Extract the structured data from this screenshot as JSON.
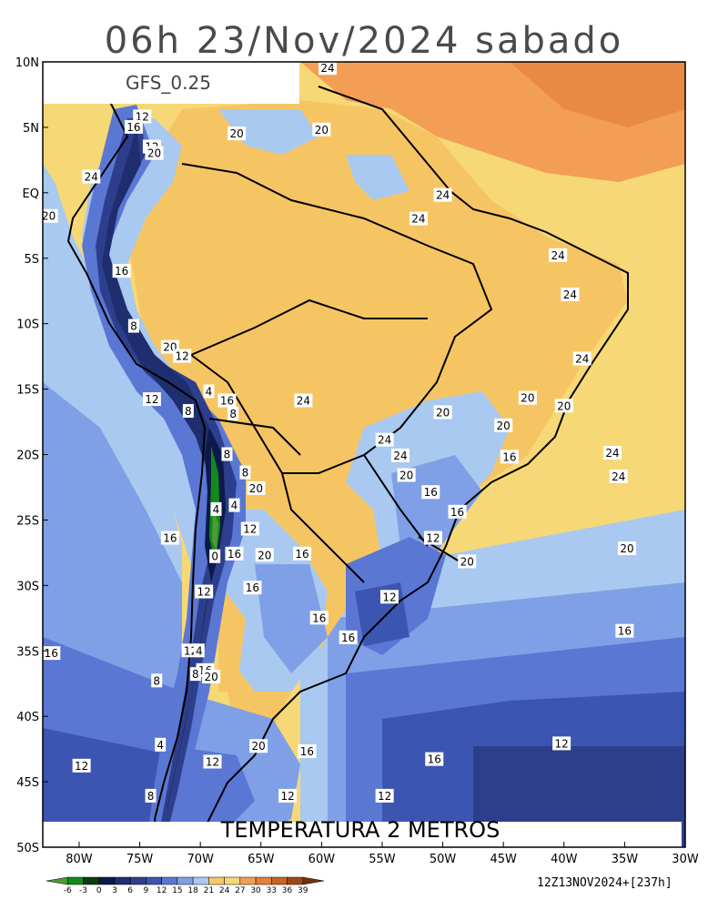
{
  "title": "06h 23/Nov/2024 sabado",
  "model_label": "GFS_0.25",
  "variable_label": "TEMPERATURA 2 METROS",
  "run_info": "12Z13NOV2024+[237h]",
  "lat_labels": [
    "10N",
    "5N",
    "EQ",
    "5S",
    "10S",
    "15S",
    "20S",
    "25S",
    "30S",
    "35S",
    "40S",
    "45S",
    "50S"
  ],
  "lon_labels": [
    "80W",
    "75W",
    "70W",
    "65W",
    "60W",
    "55W",
    "50W",
    "45W",
    "40W",
    "35W",
    "30W"
  ],
  "colorbar": {
    "ticks": [
      "-6",
      "-3",
      "0",
      "3",
      "6",
      "9",
      "12",
      "15",
      "18",
      "21",
      "24",
      "27",
      "30",
      "33",
      "36",
      "39"
    ],
    "colors": [
      "#4e9a33",
      "#138a1a",
      "#0a3d10",
      "#0b1a4a",
      "#1e2e6e",
      "#2d3f8c",
      "#3b55b0",
      "#5a77d4",
      "#7fa0e6",
      "#a9c9f0",
      "#f7c86a",
      "#f6d877",
      "#f39e55",
      "#e57f36",
      "#c8641f",
      "#9c4a14",
      "#6e3210"
    ]
  },
  "contour_labels": [
    {
      "text": "24",
      "lon": -59.5,
      "lat": 9.5
    },
    {
      "text": "12",
      "lon": -74.8,
      "lat": 5.8
    },
    {
      "text": "16",
      "lon": -75.5,
      "lat": 5.0
    },
    {
      "text": "12",
      "lon": -74.0,
      "lat": 3.5
    },
    {
      "text": "20",
      "lon": -73.8,
      "lat": 3.0
    },
    {
      "text": "20",
      "lon": -67.0,
      "lat": 4.5
    },
    {
      "text": "20",
      "lon": -60.0,
      "lat": 4.8
    },
    {
      "text": "24",
      "lon": -79.0,
      "lat": 1.2
    },
    {
      "text": "20",
      "lon": -82.5,
      "lat": -1.8
    },
    {
      "text": "24",
      "lon": -50.0,
      "lat": -0.2
    },
    {
      "text": "24",
      "lon": -52.0,
      "lat": -2.0
    },
    {
      "text": "24",
      "lon": -40.5,
      "lat": -4.8
    },
    {
      "text": "16",
      "lon": -76.5,
      "lat": -6.0
    },
    {
      "text": "24",
      "lon": -39.5,
      "lat": -7.8
    },
    {
      "text": "8",
      "lon": -75.5,
      "lat": -10.2
    },
    {
      "text": "20",
      "lon": -72.5,
      "lat": -11.8
    },
    {
      "text": "12",
      "lon": -71.5,
      "lat": -12.5
    },
    {
      "text": "24",
      "lon": -38.5,
      "lat": -12.7
    },
    {
      "text": "4",
      "lon": -69.3,
      "lat": -15.2
    },
    {
      "text": "12",
      "lon": -74.0,
      "lat": -15.8
    },
    {
      "text": "16",
      "lon": -67.8,
      "lat": -15.9
    },
    {
      "text": "8",
      "lon": -67.3,
      "lat": -16.9
    },
    {
      "text": "8",
      "lon": -71.0,
      "lat": -16.7
    },
    {
      "text": "24",
      "lon": -61.5,
      "lat": -15.9
    },
    {
      "text": "20",
      "lon": -43.0,
      "lat": -15.7
    },
    {
      "text": "20",
      "lon": -40.0,
      "lat": -16.3
    },
    {
      "text": "20",
      "lon": -50.0,
      "lat": -16.8
    },
    {
      "text": "20",
      "lon": -45.0,
      "lat": -17.8
    },
    {
      "text": "24",
      "lon": -54.8,
      "lat": -18.9
    },
    {
      "text": "24",
      "lon": -36.0,
      "lat": -19.9
    },
    {
      "text": "8",
      "lon": -67.8,
      "lat": -20.0
    },
    {
      "text": "24",
      "lon": -53.5,
      "lat": -20.1
    },
    {
      "text": "16",
      "lon": -44.5,
      "lat": -20.2
    },
    {
      "text": "24",
      "lon": -35.5,
      "lat": -21.7
    },
    {
      "text": "8",
      "lon": -66.3,
      "lat": -21.4
    },
    {
      "text": "20",
      "lon": -53.0,
      "lat": -21.6
    },
    {
      "text": "20",
      "lon": -65.4,
      "lat": -22.6
    },
    {
      "text": "16",
      "lon": -51.0,
      "lat": -22.9
    },
    {
      "text": "4",
      "lon": -68.7,
      "lat": -24.2
    },
    {
      "text": "4",
      "lon": -67.2,
      "lat": -23.9
    },
    {
      "text": "16",
      "lon": -48.8,
      "lat": -24.4
    },
    {
      "text": "12",
      "lon": -65.9,
      "lat": -25.7
    },
    {
      "text": "16",
      "lon": -72.5,
      "lat": -26.4
    },
    {
      "text": "12",
      "lon": -50.8,
      "lat": -26.4
    },
    {
      "text": "16",
      "lon": -67.2,
      "lat": -27.6
    },
    {
      "text": "0",
      "lon": -68.8,
      "lat": -27.8
    },
    {
      "text": "20",
      "lon": -64.7,
      "lat": -27.7
    },
    {
      "text": "16",
      "lon": -61.6,
      "lat": -27.6
    },
    {
      "text": "20",
      "lon": -34.8,
      "lat": -27.2
    },
    {
      "text": "20",
      "lon": -48.0,
      "lat": -28.2
    },
    {
      "text": "16",
      "lon": -65.7,
      "lat": -30.2
    },
    {
      "text": "12",
      "lon": -69.7,
      "lat": -30.5
    },
    {
      "text": "12",
      "lon": -54.4,
      "lat": -30.9
    },
    {
      "text": "16",
      "lon": -60.2,
      "lat": -32.5
    },
    {
      "text": "16",
      "lon": -35.0,
      "lat": -33.5
    },
    {
      "text": "16",
      "lon": -57.8,
      "lat": -34.0
    },
    {
      "text": "16",
      "lon": -82.3,
      "lat": -35.2
    },
    {
      "text": "12",
      "lon": -70.8,
      "lat": -35.0
    },
    {
      "text": "4",
      "lon": -70.1,
      "lat": -35.0
    },
    {
      "text": "16",
      "lon": -69.6,
      "lat": -36.5
    },
    {
      "text": "8",
      "lon": -70.4,
      "lat": -36.8
    },
    {
      "text": "20",
      "lon": -69.1,
      "lat": -37.0
    },
    {
      "text": "8",
      "lon": -73.6,
      "lat": -37.3
    },
    {
      "text": "4",
      "lon": -73.3,
      "lat": -42.2
    },
    {
      "text": "20",
      "lon": -65.2,
      "lat": -42.3
    },
    {
      "text": "16",
      "lon": -61.2,
      "lat": -42.7
    },
    {
      "text": "12",
      "lon": -40.2,
      "lat": -42.1
    },
    {
      "text": "16",
      "lon": -50.7,
      "lat": -43.3
    },
    {
      "text": "12",
      "lon": -79.8,
      "lat": -43.8
    },
    {
      "text": "12",
      "lon": -69.0,
      "lat": -43.5
    },
    {
      "text": "12",
      "lon": -54.8,
      "lat": -46.1
    },
    {
      "text": "12",
      "lon": -62.8,
      "lat": -46.1
    },
    {
      "text": "8",
      "lon": -74.1,
      "lat": -46.1
    }
  ]
}
